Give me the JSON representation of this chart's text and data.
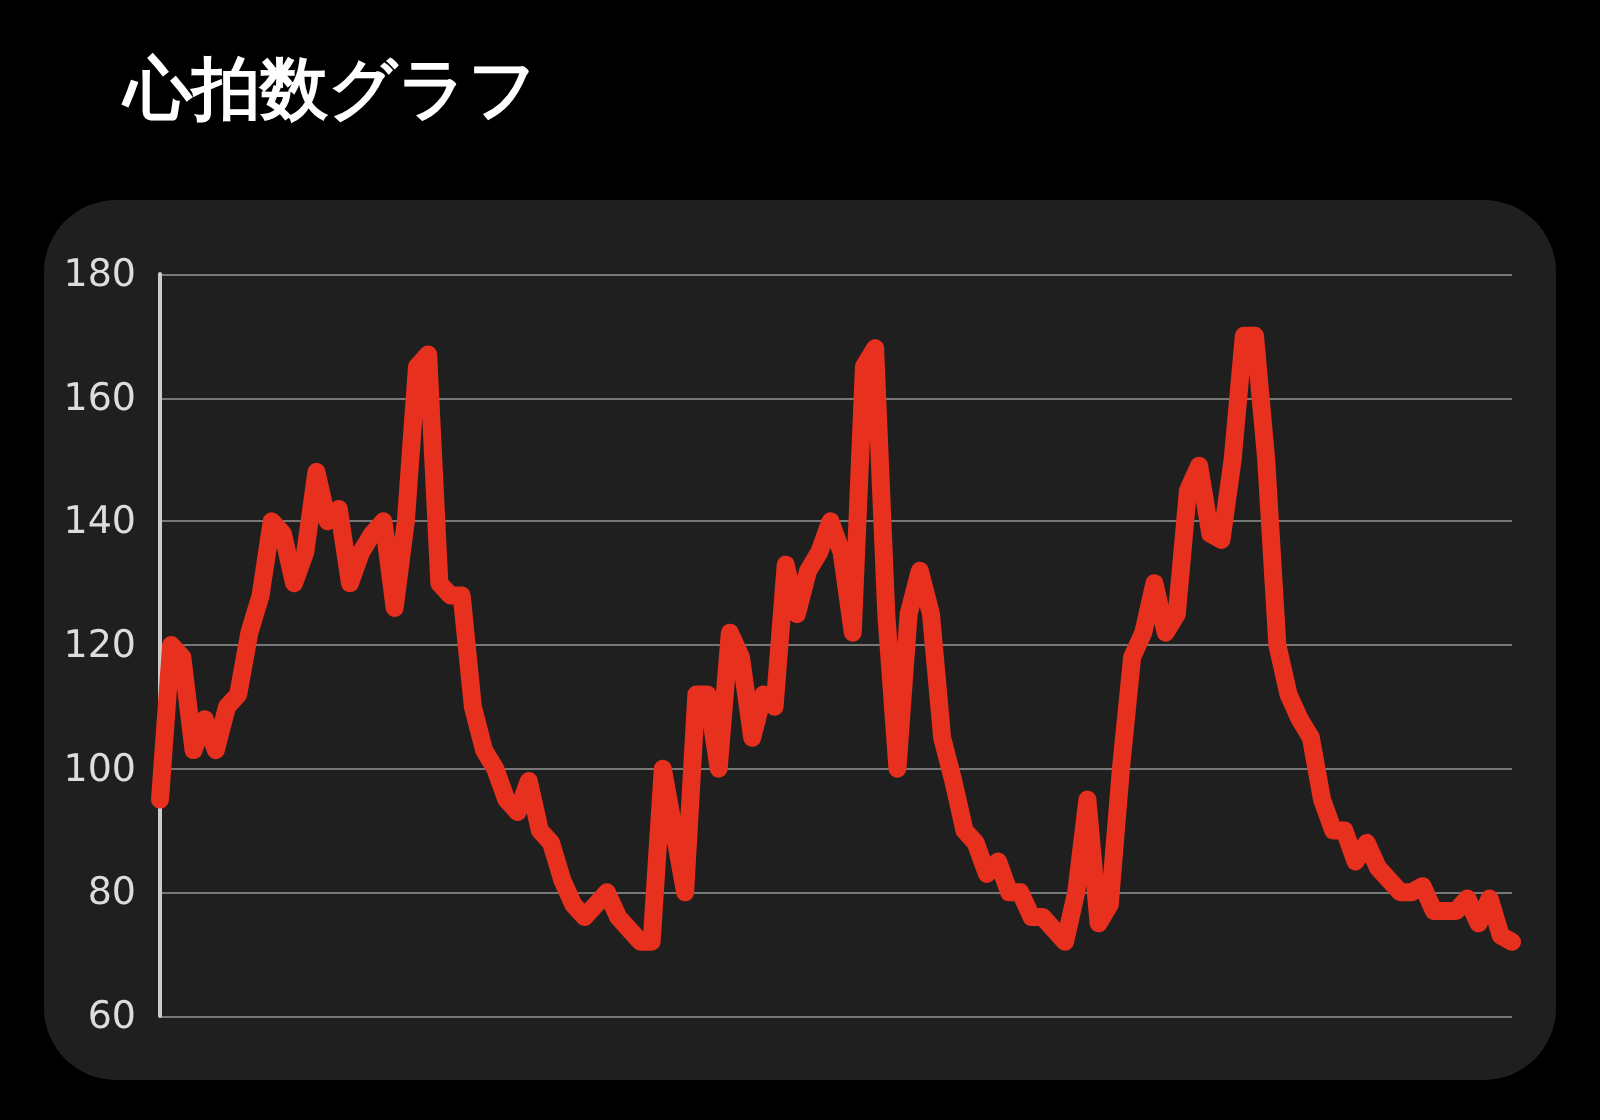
{
  "chart_data": {
    "type": "line",
    "title": "心拍数グラフ",
    "categories": [
      null,
      null,
      null,
      null,
      null,
      null,
      null,
      null,
      null,
      null,
      null,
      null,
      null,
      null,
      null,
      null,
      null,
      null,
      null,
      null,
      null,
      null,
      null,
      null,
      null,
      null,
      null,
      null,
      null,
      null,
      null,
      null,
      null,
      null,
      null,
      null,
      null,
      null,
      null,
      null,
      null,
      null,
      null,
      null,
      null,
      null,
      null,
      null,
      null,
      null,
      null,
      null,
      null,
      null,
      null,
      null,
      null,
      null,
      null,
      null,
      null,
      null,
      null,
      null,
      null,
      null,
      null,
      null,
      null,
      null,
      null,
      null,
      null,
      null,
      null,
      null,
      null,
      null,
      null,
      null,
      null,
      null,
      null,
      null,
      null,
      null,
      null,
      null,
      null,
      null,
      null,
      null,
      null,
      null,
      null,
      null,
      null,
      null,
      null,
      null,
      null,
      null,
      null,
      null,
      null,
      null,
      null,
      null,
      null,
      null,
      null,
      null,
      null,
      null,
      null,
      null,
      null,
      null,
      null,
      null,
      null,
      null
    ],
    "series": [
      {
        "color": "#e8301f",
        "values": [
          95,
          120,
          118,
          103,
          108,
          103,
          110,
          112,
          122,
          128,
          140,
          138,
          130,
          135,
          148,
          140,
          142,
          130,
          135,
          138,
          140,
          126,
          140,
          165,
          167,
          130,
          128,
          128,
          110,
          103,
          100,
          95,
          93,
          98,
          90,
          88,
          82,
          78,
          76,
          78,
          80,
          76,
          74,
          72,
          72,
          100,
          90,
          80,
          112,
          112,
          100,
          122,
          118,
          105,
          112,
          110,
          133,
          125,
          132,
          135,
          140,
          135,
          122,
          165,
          168,
          125,
          100,
          125,
          132,
          125,
          105,
          98,
          90,
          88,
          83,
          85,
          80,
          80,
          76,
          76,
          74,
          72,
          80,
          95,
          75,
          78,
          100,
          118,
          122,
          130,
          122,
          125,
          145,
          149,
          138,
          137,
          150,
          170,
          170,
          150,
          120,
          112,
          108,
          105,
          95,
          90,
          90,
          85,
          88,
          84,
          82,
          80,
          80,
          81,
          77,
          77,
          77,
          79,
          75,
          79,
          73,
          72
        ]
      }
    ],
    "ylim": [
      60,
      180
    ],
    "yticks": [
      60,
      80,
      100,
      120,
      140,
      160,
      180
    ],
    "grid": "y",
    "tick_labels": "y",
    "line_style": "solid"
  }
}
